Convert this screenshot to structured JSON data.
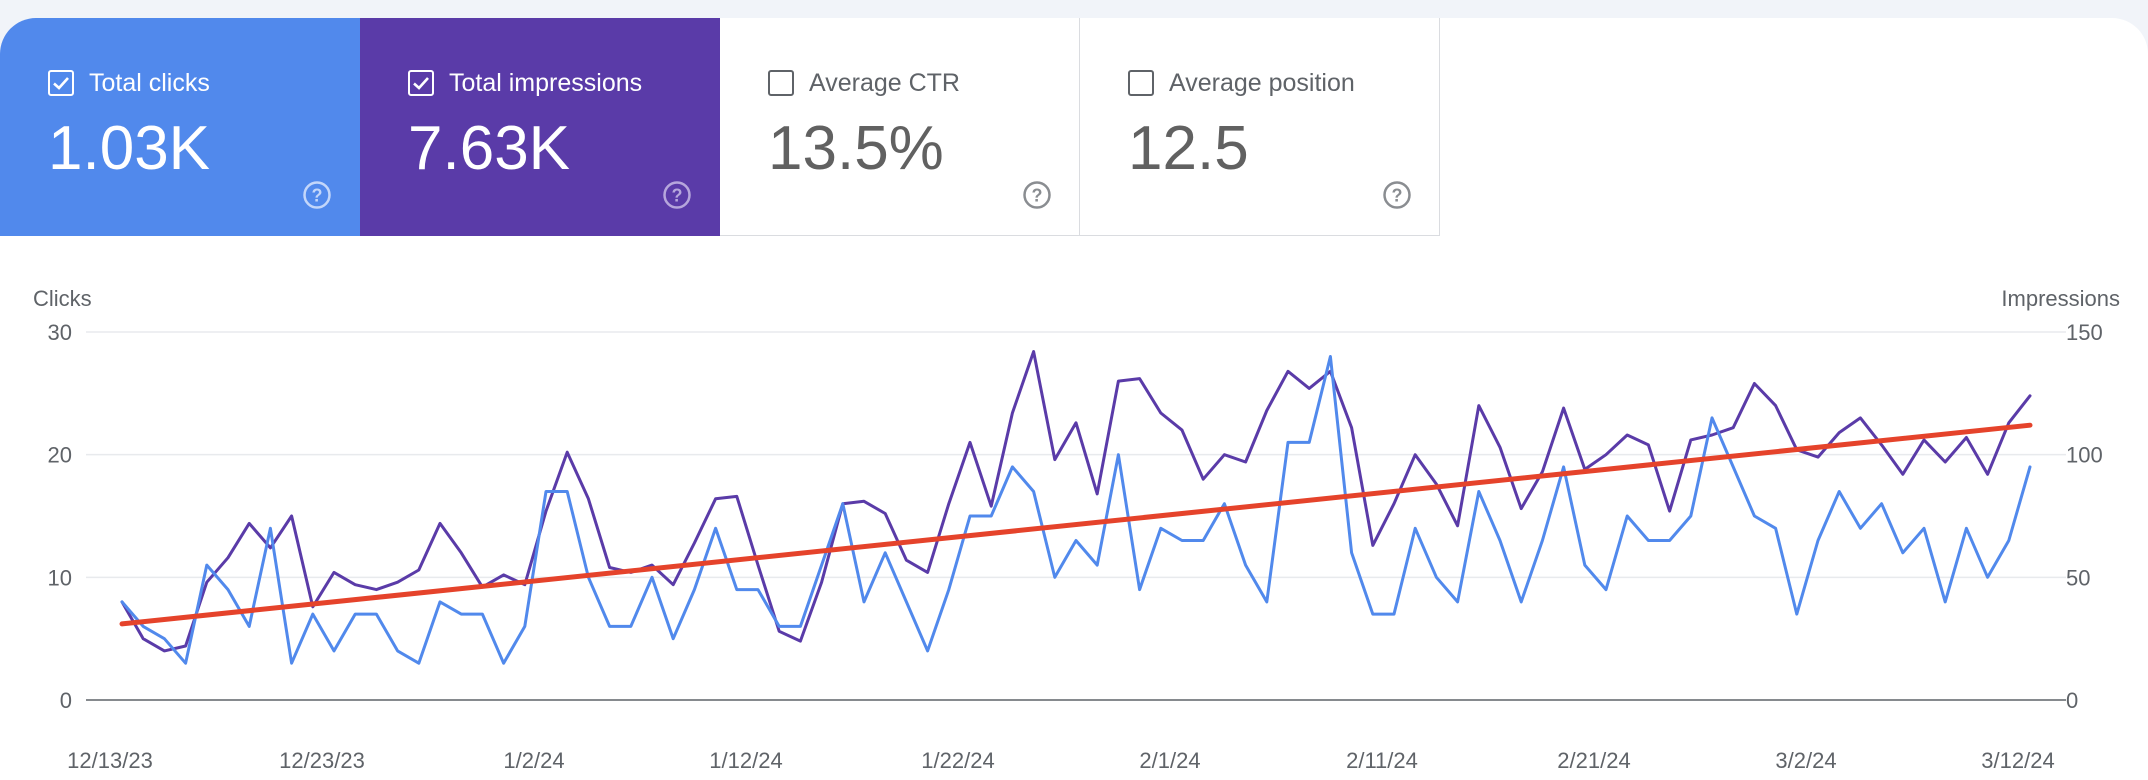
{
  "cards": [
    {
      "label": "Total clicks",
      "value": "1.03K",
      "checked": true
    },
    {
      "label": "Total impressions",
      "value": "7.63K",
      "checked": true
    },
    {
      "label": "Average CTR",
      "value": "13.5%",
      "checked": false
    },
    {
      "label": "Average position",
      "value": "12.5",
      "checked": false
    }
  ],
  "colors": {
    "clicks": "#5189ec",
    "impressions": "#5a3ba8",
    "trend": "#e5432b",
    "grid": "#e8eaed",
    "axis": "#5f6368"
  },
  "chart_data": {
    "type": "line",
    "left_axis_label": "Clicks",
    "right_axis_label": "Impressions",
    "left_ylim": [
      0,
      30
    ],
    "right_ylim": [
      0,
      150
    ],
    "left_ticks": [
      "0",
      "10",
      "20",
      "30"
    ],
    "right_ticks": [
      "0",
      "50",
      "100",
      "150"
    ],
    "x_start": "2023-12-13",
    "x_end": "2024-03-12",
    "x_tick_labels": [
      "12/13/23",
      "12/23/23",
      "1/2/24",
      "1/12/24",
      "1/22/24",
      "2/1/24",
      "2/11/24",
      "2/21/24",
      "3/2/24",
      "3/12/24"
    ],
    "grid": true,
    "series": [
      {
        "name": "Total clicks",
        "axis": "left",
        "values": [
          8,
          6,
          5,
          3,
          11,
          9,
          6,
          14,
          3,
          7,
          4,
          7,
          7,
          4,
          3,
          8,
          7,
          7,
          3,
          6,
          17,
          17,
          10,
          6,
          6,
          10,
          5,
          9,
          14,
          9,
          9,
          6,
          6,
          11,
          16,
          8,
          12,
          8,
          4,
          9,
          15,
          15,
          19,
          17,
          10,
          13,
          11,
          20,
          9,
          14,
          13,
          13,
          16,
          11,
          8,
          21,
          21,
          28,
          12,
          7,
          7,
          14,
          10,
          8,
          17,
          13,
          8,
          13,
          19,
          11,
          9,
          15,
          13,
          13,
          15,
          23,
          19,
          15,
          14,
          7,
          13,
          17,
          14,
          16,
          12,
          14,
          8,
          14,
          10,
          13,
          19
        ]
      },
      {
        "name": "Total impressions",
        "axis": "right",
        "values": [
          40,
          25,
          20,
          22,
          48,
          58,
          72,
          62,
          75,
          38,
          52,
          47,
          45,
          48,
          53,
          72,
          60,
          46,
          51,
          47,
          77,
          101,
          82,
          54,
          52,
          55,
          47,
          64,
          82,
          83,
          55,
          28,
          24,
          48,
          80,
          81,
          76,
          57,
          52,
          80,
          105,
          79,
          117,
          142,
          98,
          113,
          84,
          130,
          131,
          117,
          110,
          90,
          100,
          97,
          118,
          134,
          127,
          134,
          111,
          63,
          80,
          100,
          88,
          71,
          120,
          103,
          78,
          93,
          119,
          94,
          100,
          108,
          104,
          77,
          106,
          108,
          111,
          129,
          120,
          102,
          99,
          109,
          115,
          104,
          92,
          106,
          97,
          107,
          92,
          113,
          124
        ]
      },
      {
        "name": "Trend",
        "axis": "left",
        "values": [
          6.2,
          22.4
        ]
      }
    ]
  }
}
